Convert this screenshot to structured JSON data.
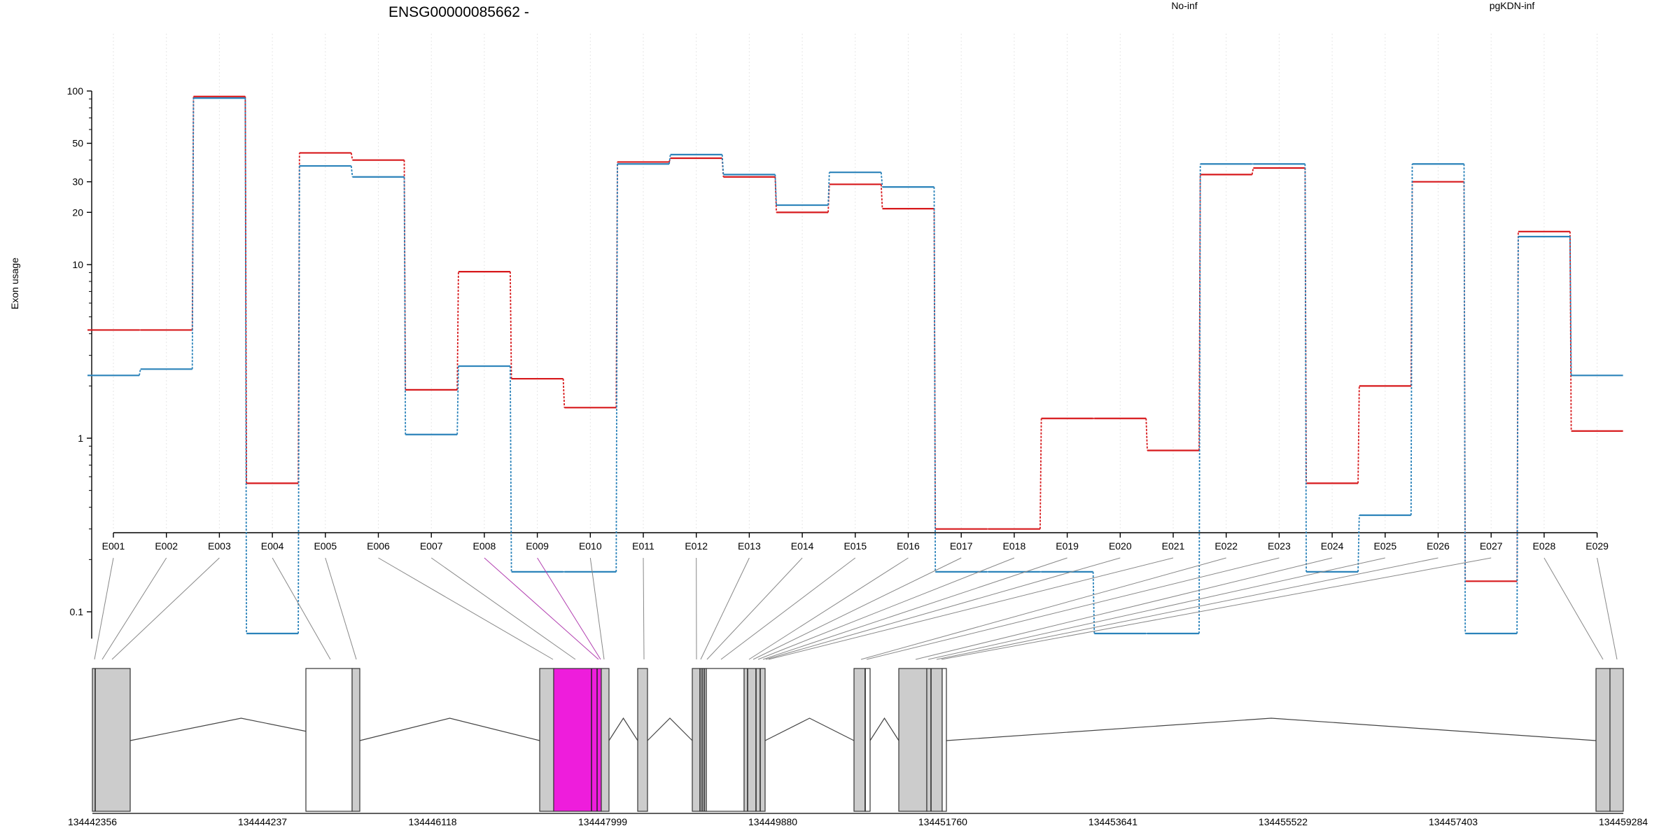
{
  "chart_data": {
    "type": "line",
    "title": "ENSG00000085662 -",
    "ylabel": "Exon usage",
    "yscale": "log",
    "ylim": [
      0.07,
      100
    ],
    "yticks": [
      "0.1",
      "1",
      "10",
      "20",
      "30",
      "50",
      "100"
    ],
    "yticks_values": [
      0.1,
      1,
      10,
      20,
      30,
      50,
      100
    ],
    "categories": [
      "E001",
      "E002",
      "E003",
      "E004",
      "E005",
      "E006",
      "E007",
      "E008",
      "E009",
      "E010",
      "E011",
      "E012",
      "E013",
      "E014",
      "E015",
      "E016",
      "E017",
      "E018",
      "E019",
      "E020",
      "E021",
      "E022",
      "E023",
      "E024",
      "E025",
      "E026",
      "E027",
      "E028",
      "E029"
    ],
    "series": [
      {
        "name": "No-inf",
        "color": "#d7191c",
        "values": [
          4.2,
          4.2,
          93,
          0.55,
          44,
          40,
          1.9,
          9.1,
          2.2,
          1.5,
          39,
          41,
          32,
          20,
          29,
          21,
          0.3,
          0.3,
          1.3,
          1.3,
          0.85,
          33,
          36,
          0.55,
          2.0,
          30,
          0.15,
          15.5,
          1.1
        ]
      },
      {
        "name": "pgKDN-inf",
        "color": "#2b83ba",
        "values": [
          2.3,
          2.5,
          91,
          0.075,
          37,
          32,
          1.05,
          2.6,
          0.17,
          0.17,
          38,
          43,
          33,
          22,
          34,
          28,
          0.17,
          0.17,
          0.17,
          0.075,
          0.075,
          38,
          38,
          0.17,
          0.36,
          38,
          0.075,
          14.5,
          2.3
        ]
      }
    ],
    "legend": "top-right",
    "grid": "vertical",
    "highlight_color": "#ee1ddc",
    "gene_model": {
      "coordinate_labels": [
        "134442356",
        "134444237",
        "134446118",
        "134447999",
        "134449880",
        "134451760",
        "134453641",
        "134455522",
        "134457403",
        "134459284"
      ],
      "coordinate_values": [
        134442356,
        134444237,
        134446118,
        134447999,
        134449880,
        134451760,
        134453641,
        134455522,
        134457403,
        134459284
      ]
    }
  }
}
